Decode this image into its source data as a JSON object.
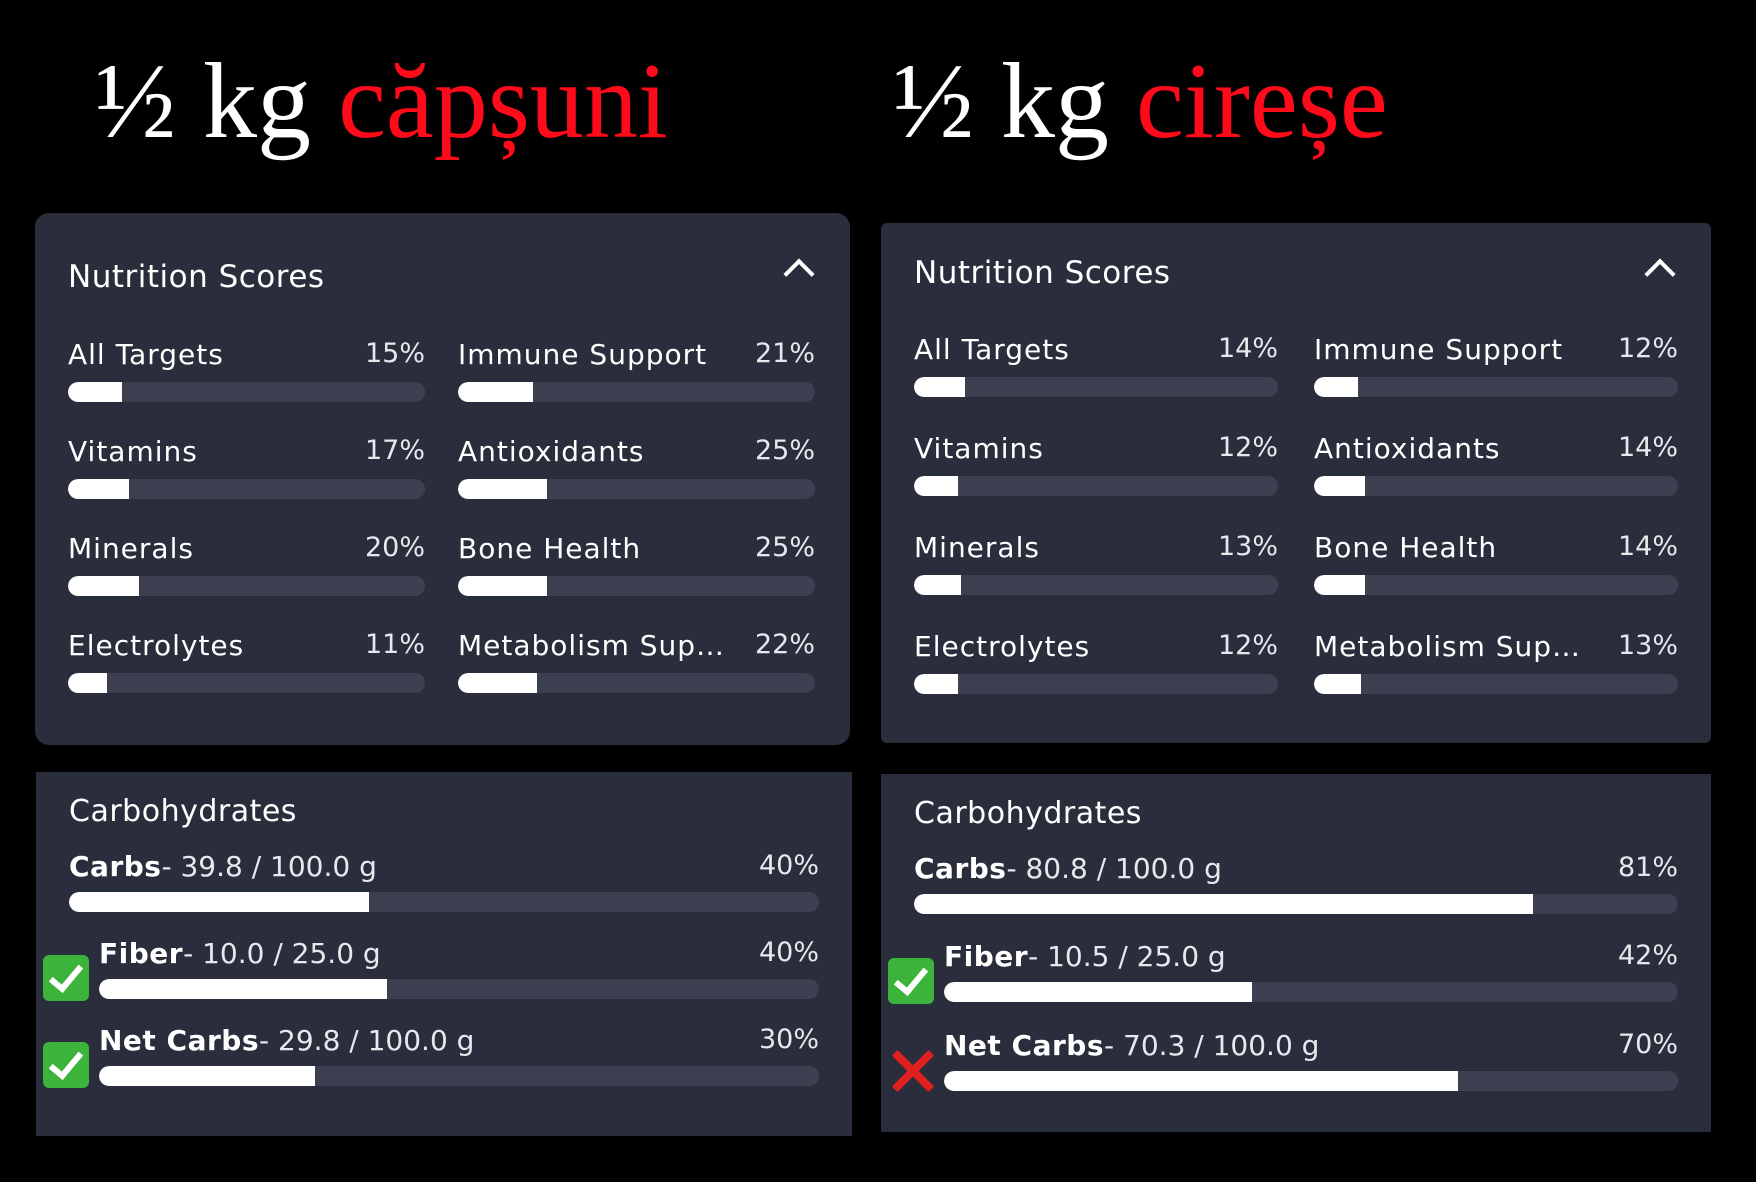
{
  "left": {
    "title": {
      "fraction": "½",
      "unit": "kg",
      "fruit": "căpșuni"
    },
    "scores": {
      "title": "Nutrition Scores",
      "items": [
        {
          "label": "All Targets",
          "pct": "15%",
          "value": 15
        },
        {
          "label": "Immune Support",
          "pct": "21%",
          "value": 21
        },
        {
          "label": "Vitamins",
          "pct": "17%",
          "value": 17
        },
        {
          "label": "Antioxidants",
          "pct": "25%",
          "value": 25
        },
        {
          "label": "Minerals",
          "pct": "20%",
          "value": 20
        },
        {
          "label": "Bone Health",
          "pct": "25%",
          "value": 25
        },
        {
          "label": "Electrolytes",
          "pct": "11%",
          "value": 11
        },
        {
          "label": "Metabolism Supp…",
          "pct": "22%",
          "value": 22
        }
      ]
    },
    "carbs": {
      "title": "Carbohydrates",
      "rows": [
        {
          "name": "Carbs",
          "amount": "- 39.8 / 100.0 g",
          "pct": "40%",
          "value": 40,
          "icon": "none"
        },
        {
          "name": "Fiber",
          "amount": "- 10.0 / 25.0 g",
          "pct": "40%",
          "value": 40,
          "icon": "check-icon"
        },
        {
          "name": "Net Carbs",
          "amount": "- 29.8 / 100.0 g",
          "pct": "30%",
          "value": 30,
          "icon": "check-icon"
        }
      ]
    }
  },
  "right": {
    "title": {
      "fraction": "½",
      "unit": "kg",
      "fruit": "cireșe"
    },
    "scores": {
      "title": "Nutrition Scores",
      "items": [
        {
          "label": "All Targets",
          "pct": "14%",
          "value": 14
        },
        {
          "label": "Immune Support",
          "pct": "12%",
          "value": 12
        },
        {
          "label": "Vitamins",
          "pct": "12%",
          "value": 12
        },
        {
          "label": "Antioxidants",
          "pct": "14%",
          "value": 14
        },
        {
          "label": "Minerals",
          "pct": "13%",
          "value": 13
        },
        {
          "label": "Bone Health",
          "pct": "14%",
          "value": 14
        },
        {
          "label": "Electrolytes",
          "pct": "12%",
          "value": 12
        },
        {
          "label": "Metabolism Suppo…",
          "pct": "13%",
          "value": 13
        }
      ]
    },
    "carbs": {
      "title": "Carbohydrates",
      "rows": [
        {
          "name": "Carbs",
          "amount": "- 80.8 / 100.0 g",
          "pct": "81%",
          "value": 81,
          "icon": "none"
        },
        {
          "name": "Fiber",
          "amount": "- 10.5 / 25.0 g",
          "pct": "42%",
          "value": 42,
          "icon": "check-icon"
        },
        {
          "name": "Net Carbs",
          "amount": "- 70.3 / 100.0 g",
          "pct": "70%",
          "value": 70,
          "icon": "cross-icon"
        }
      ]
    }
  },
  "colors": {
    "fruit_text": "#ff0a1a",
    "panel_bg": "#2a2d3c",
    "track": "#3d4050",
    "fill": "#ffffff",
    "check": "#3cb43c",
    "cross": "#e01f1f"
  }
}
